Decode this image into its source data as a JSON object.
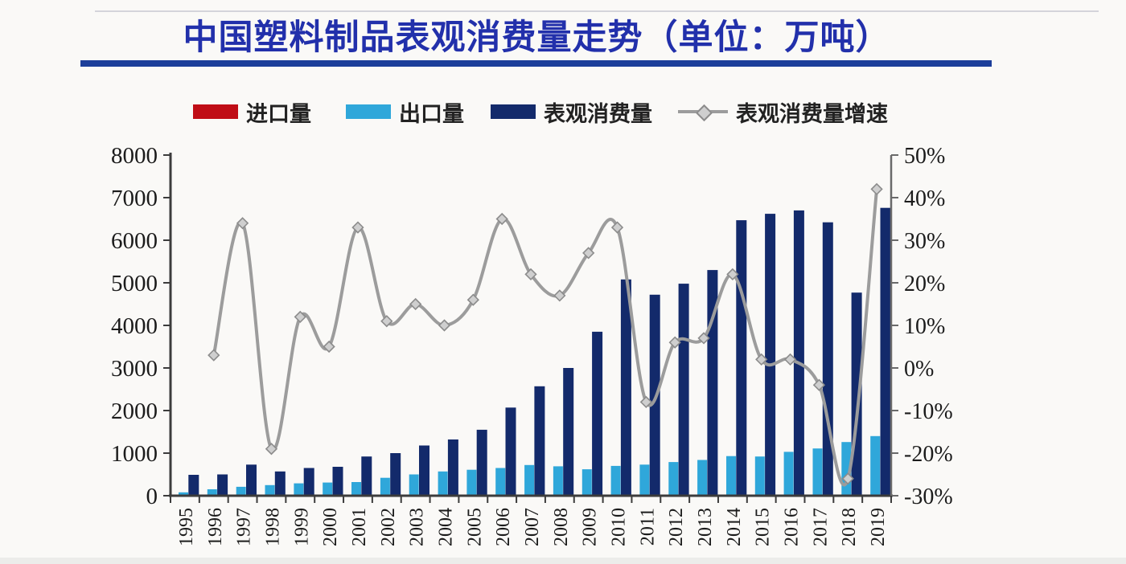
{
  "page": {
    "title": "中国塑料制品表观消费量走势（单位：万吨）"
  },
  "legend": {
    "items": [
      {
        "label": "进口量",
        "color": "#c00d16",
        "type": "bar"
      },
      {
        "label": "出口量",
        "color": "#2fa7da",
        "type": "bar"
      },
      {
        "label": "表观消费量",
        "color": "#132a6b",
        "type": "bar"
      },
      {
        "label": "表观消费量增速",
        "color": "#9c9c9c",
        "type": "line"
      }
    ]
  },
  "chart_data": {
    "type": "bar",
    "subtype": "grouped-bars-with-growth-line",
    "title": "中国塑料制品表观消费量走势（单位：万吨）",
    "unit": "万吨",
    "categories": [
      "1995",
      "1996",
      "1997",
      "1998",
      "1999",
      "2000",
      "2001",
      "2002",
      "2003",
      "2004",
      "2005",
      "2006",
      "2007",
      "2008",
      "2009",
      "2010",
      "2011",
      "2012",
      "2013",
      "2014",
      "2015",
      "2016",
      "2017",
      "2018",
      "2019"
    ],
    "series": [
      {
        "name": "进口量",
        "type": "bar",
        "axis": "left",
        "color": "#c00d16",
        "visible": false,
        "values": []
      },
      {
        "name": "出口量",
        "type": "bar",
        "axis": "left",
        "color": "#2fa7da",
        "visible": true,
        "values": [
          80,
          150,
          210,
          250,
          290,
          310,
          320,
          420,
          500,
          570,
          610,
          650,
          720,
          690,
          620,
          700,
          730,
          790,
          840,
          930,
          920,
          1030,
          1110,
          1260,
          1400
        ]
      },
      {
        "name": "表观消费量",
        "type": "bar",
        "axis": "left",
        "color": "#132a6b",
        "visible": true,
        "values": [
          490,
          500,
          730,
          570,
          650,
          680,
          920,
          1000,
          1180,
          1320,
          1550,
          2070,
          2570,
          3000,
          3850,
          5080,
          4720,
          4980,
          5300,
          6470,
          6620,
          6700,
          6420,
          4770,
          6760
        ]
      },
      {
        "name": "表观消费量增速",
        "type": "line",
        "axis": "right",
        "color": "#9c9c9c",
        "marker": "diamond",
        "values_percent": [
          null,
          3,
          34,
          -19,
          12,
          5,
          33,
          11,
          15,
          10,
          16,
          35,
          22,
          17,
          27,
          33,
          -8,
          6,
          7,
          22,
          2,
          2,
          -4,
          -26,
          42
        ]
      }
    ],
    "left_axis": {
      "min": 0,
      "max": 8000,
      "step": 1000,
      "tick_labels": [
        "8000",
        "7000",
        "6000",
        "5000",
        "4000",
        "3000",
        "2000",
        "1000",
        "0"
      ]
    },
    "right_axis": {
      "min": -30,
      "max": 50,
      "step": 10,
      "tick_labels": [
        "50%",
        "40%",
        "30%",
        "20%",
        "10%",
        "0%",
        "-10%",
        "-20%",
        "-30%"
      ]
    },
    "legend_position": "top",
    "grid": false
  }
}
